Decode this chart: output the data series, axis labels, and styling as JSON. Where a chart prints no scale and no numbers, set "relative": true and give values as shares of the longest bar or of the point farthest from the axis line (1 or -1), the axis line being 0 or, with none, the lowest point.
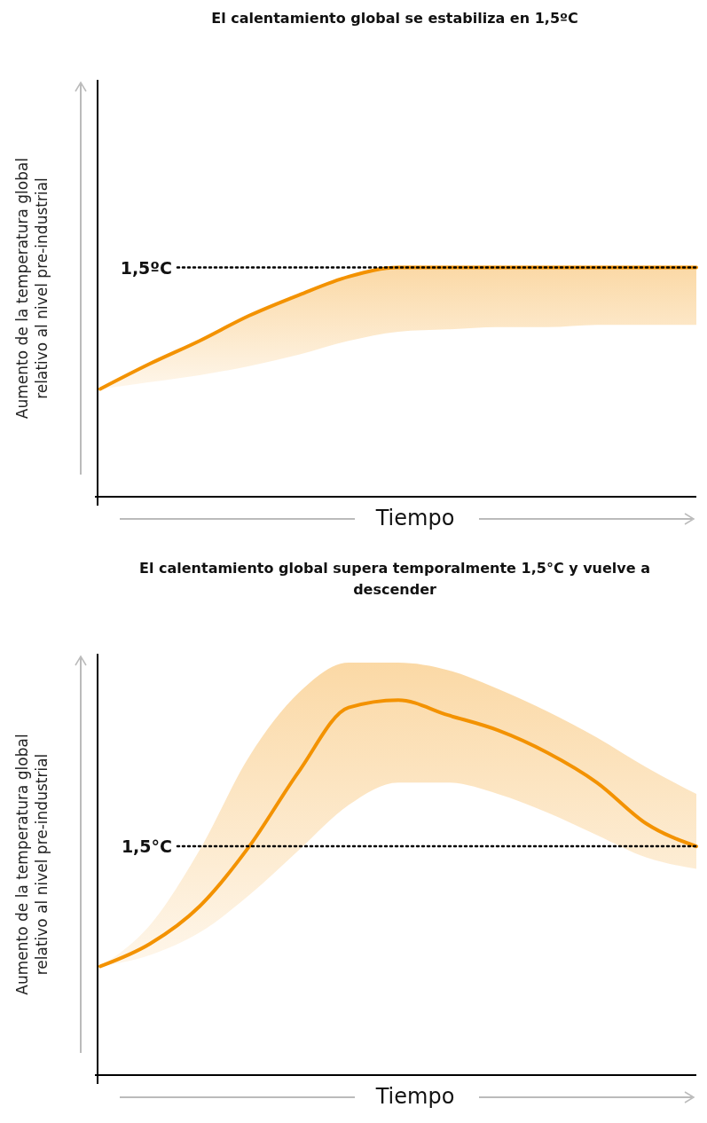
{
  "chart_data": [
    {
      "type": "line",
      "title": "El calentamiento global se estabiliza en 1,5ºC",
      "xlabel": "Tiempo",
      "ylabel": "Aumento de la temperatura global relativo al nivel pre-industrial",
      "relative": true,
      "categories": [
        null,
        null,
        null,
        null,
        null,
        null,
        null,
        null,
        null,
        null,
        null,
        null,
        null
      ],
      "series": [
        {
          "color": "#f39200",
          "values": [
            0.47,
            0.58,
            0.68,
            0.79,
            0.88,
            0.96,
            1.0,
            1.0,
            1.0,
            1.0,
            1.0,
            1.0,
            1.0
          ],
          "lower": [
            0.47,
            0.5,
            0.53,
            0.57,
            0.62,
            0.68,
            0.72,
            0.73,
            0.74,
            0.74,
            0.75,
            0.75,
            0.75
          ],
          "upper": [
            0.47,
            0.58,
            0.68,
            0.79,
            0.88,
            0.96,
            1.0,
            1.0,
            1.0,
            1.0,
            1.0,
            1.0,
            1.0
          ]
        }
      ],
      "ref_lines": [
        {
          "axis": "y",
          "value": 1.0,
          "label": "1,5ºC",
          "color": "#000000",
          "line_style": "dotted"
        }
      ],
      "tick_labels": false,
      "line_style": "solid",
      "marker": "none"
    },
    {
      "type": "line",
      "title": "El calentamiento global supera temporalmente 1,5°C y vuelve a descender",
      "xlabel": "Tiempo",
      "ylabel": "Aumento de la temperatura global relativo al nivel pre-industrial",
      "relative": true,
      "categories": [
        null,
        null,
        null,
        null,
        null,
        null,
        null,
        null,
        null,
        null,
        null,
        null,
        null
      ],
      "series": [
        {
          "color": "#f39200",
          "values": [
            0.29,
            0.35,
            0.45,
            0.61,
            0.81,
            0.98,
            1.0,
            0.96,
            0.92,
            0.86,
            0.78,
            0.67,
            0.61
          ],
          "lower": [
            0.29,
            0.32,
            0.38,
            0.48,
            0.6,
            0.72,
            0.78,
            0.78,
            0.75,
            0.7,
            0.64,
            0.58,
            0.55
          ],
          "upper": [
            0.29,
            0.4,
            0.6,
            0.85,
            1.02,
            1.1,
            1.1,
            1.08,
            1.03,
            0.97,
            0.9,
            0.82,
            0.75
          ]
        }
      ],
      "ref_lines": [
        {
          "axis": "y",
          "value": 0.61,
          "label": "1,5°C",
          "color": "#000000",
          "line_style": "dotted"
        }
      ],
      "tick_labels": false,
      "line_style": "solid",
      "marker": "none"
    }
  ]
}
